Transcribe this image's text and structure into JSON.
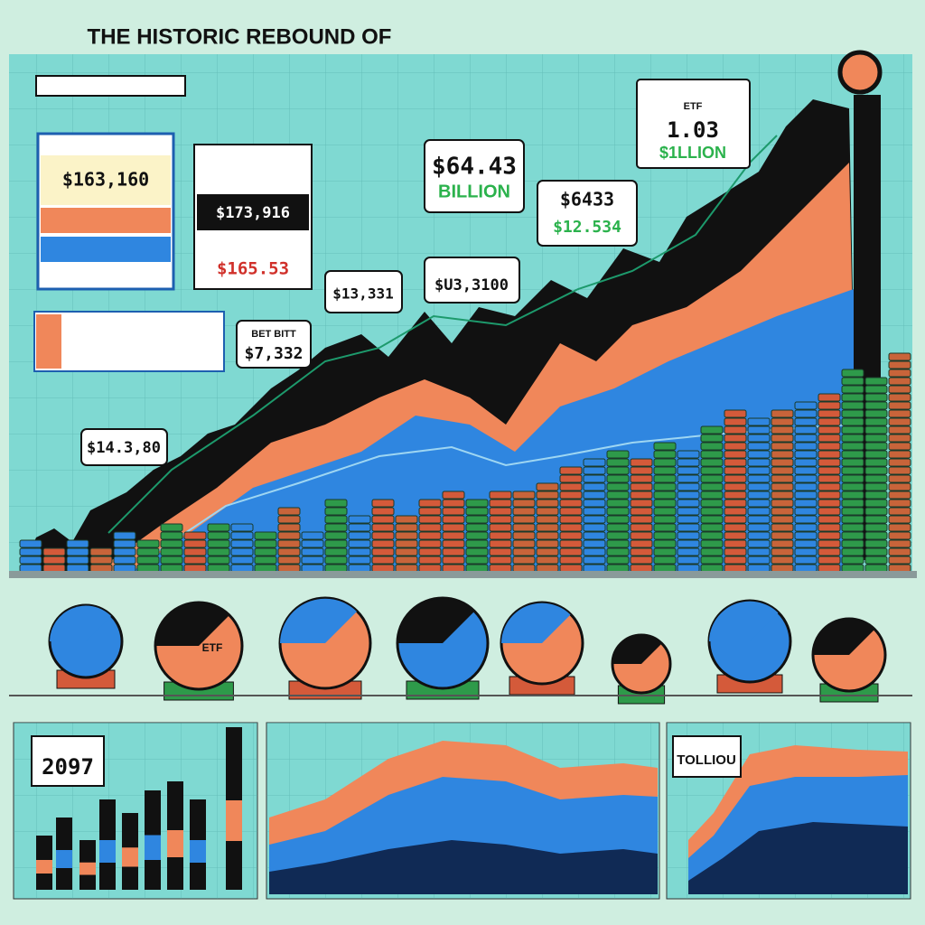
{
  "header": {
    "title": "THE HISTORIC REBOUND OF"
  },
  "callouts": {
    "big_value": "$64.43",
    "big_unit": "BILLION",
    "value_2": "$6433",
    "value_3": "$12.534",
    "value_4": "1.03",
    "value_4_unit": "$1LLION",
    "value_4_tag": "ETF",
    "value_5": "$13,331",
    "value_6": "$U3,3100",
    "value_7": "$7,332",
    "value_7_tag": "BET BITT",
    "value_8": "$14.3,80"
  },
  "left_panel": {
    "value_1": "$163,160",
    "value_2": "$173,916",
    "value_3": "$165.53"
  },
  "globe": {
    "label": "ETF"
  },
  "bottom": {
    "year": "2097",
    "label": "TOLLIOU"
  }
}
